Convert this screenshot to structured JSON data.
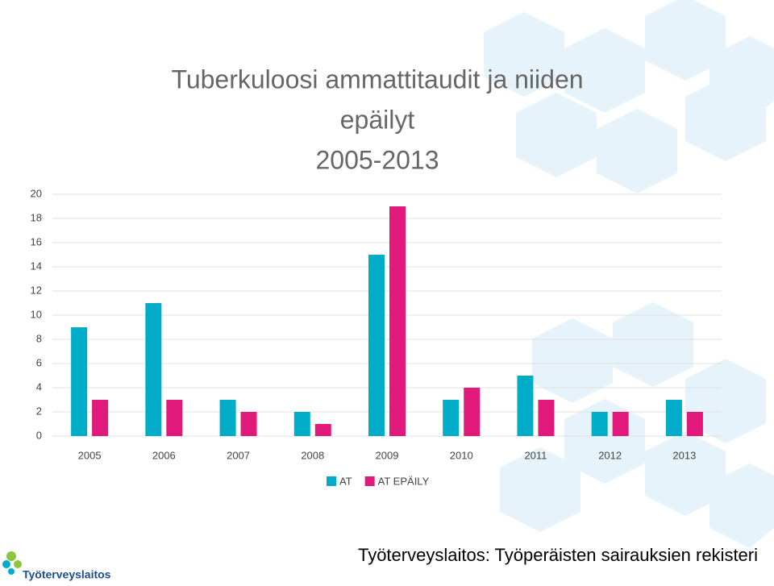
{
  "chart_data": {
    "type": "bar",
    "title": [
      "Tuberkuloosi ammattitaudit ja niiden",
      "epäilyt",
      "2005-2013"
    ],
    "categories": [
      "2005",
      "2006",
      "2007",
      "2008",
      "2009",
      "2010",
      "2011",
      "2012",
      "2013"
    ],
    "series": [
      {
        "name": "AT",
        "color": "#00acc8",
        "values": [
          9,
          11,
          3,
          2,
          15,
          3,
          5,
          2,
          3
        ]
      },
      {
        "name": "AT EPÄILY",
        "color": "#e0197a",
        "values": [
          3,
          3,
          2,
          1,
          19,
          4,
          3,
          2,
          2
        ]
      }
    ],
    "ylim": [
      0,
      20
    ],
    "yticks": [
      0,
      2,
      4,
      6,
      8,
      10,
      12,
      14,
      16,
      18,
      20
    ],
    "grid": true
  },
  "footer": "Työterveyslaitos: Työperäisten sairauksien rekisteri",
  "logo": "Työterveyslaitos"
}
